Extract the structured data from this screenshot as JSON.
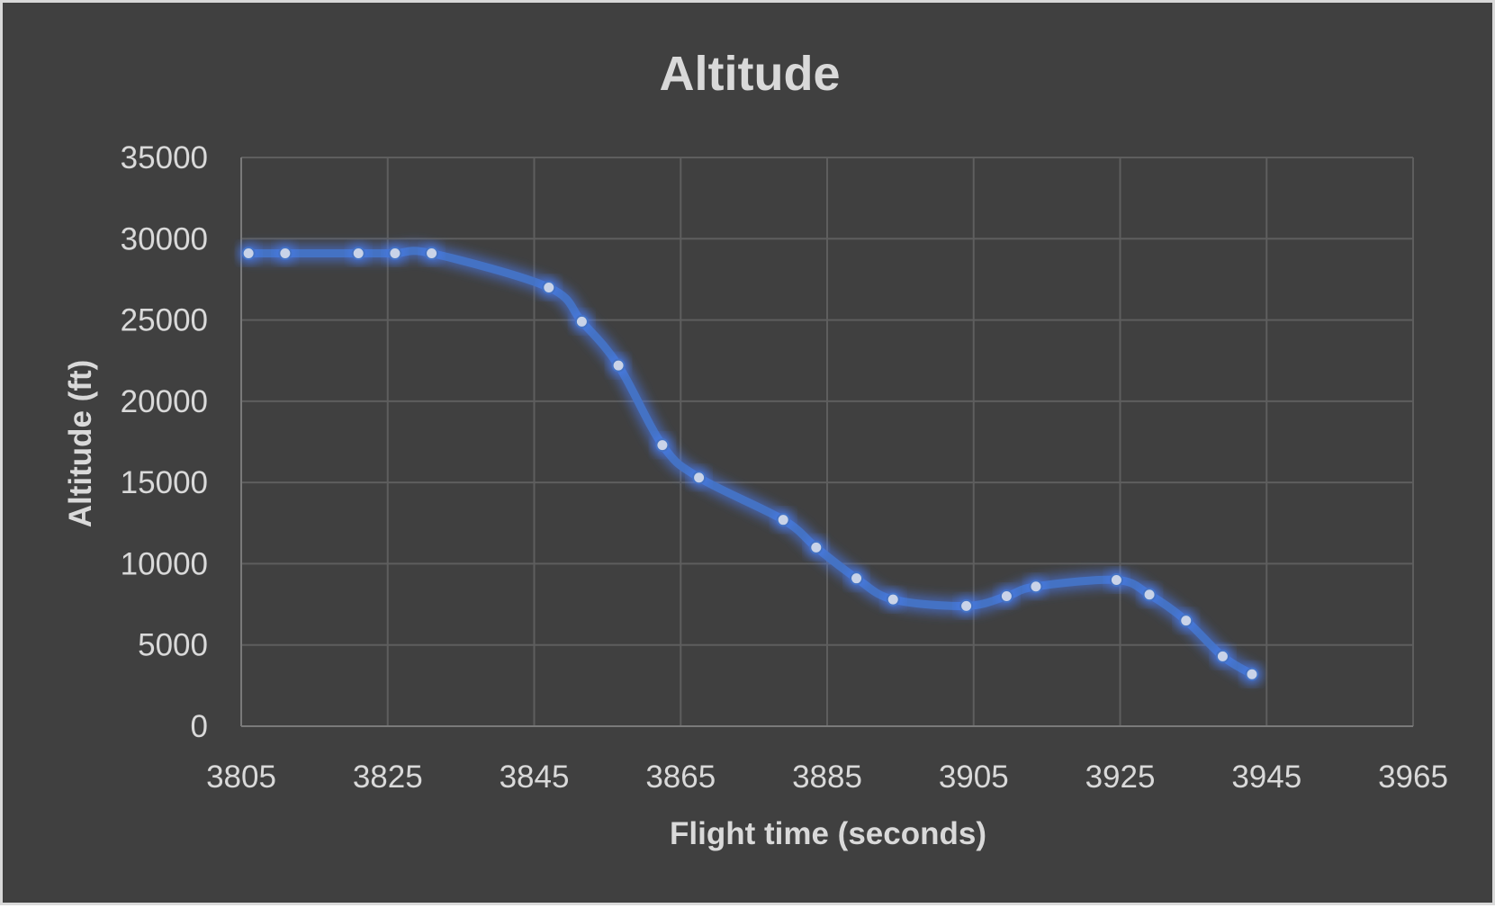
{
  "colors": {
    "background": "#404040",
    "border": "#d9d9d9",
    "text": "#d9d9d9",
    "gridline": "#5e5e5e",
    "series_line": "#4472c4",
    "marker_fill": "#c9d3e8",
    "glow": "#4a80ff"
  },
  "chart_data": {
    "type": "line",
    "title": "Altitude",
    "xlabel": "Flight time (seconds)",
    "ylabel": "Altitude (ft)",
    "xlim": [
      3805,
      3965
    ],
    "ylim": [
      0,
      35000
    ],
    "x_ticks": [
      3805,
      3825,
      3845,
      3865,
      3885,
      3905,
      3925,
      3945,
      3965
    ],
    "y_ticks": [
      0,
      5000,
      10000,
      15000,
      20000,
      25000,
      30000,
      35000
    ],
    "grid": true,
    "legend": "none",
    "smoothed": true,
    "markers": true,
    "series": [
      {
        "x": [
          3806,
          3811,
          3821,
          3826,
          3831,
          3847,
          3851.5,
          3856.5,
          3862.5,
          3867.5,
          3879,
          3883.5,
          3889,
          3894,
          3904,
          3909.5,
          3913.5,
          3924.5,
          3929,
          3934,
          3939,
          3943
        ],
        "y": [
          29100,
          29100,
          29100,
          29100,
          29100,
          27000,
          24900,
          22200,
          17300,
          15300,
          12700,
          11000,
          9100,
          7800,
          7400,
          8000,
          8600,
          9000,
          8100,
          6500,
          4300,
          3200
        ]
      }
    ]
  }
}
